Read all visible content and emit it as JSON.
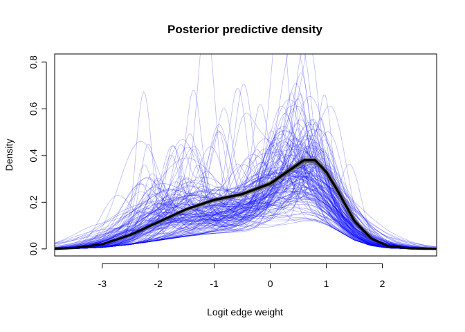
{
  "chart_data": {
    "type": "line",
    "title": "Posterior predictive density",
    "xlabel": "Logit edge weight",
    "ylabel": "Density",
    "xlim": [
      -3.85,
      2.97
    ],
    "ylim": [
      -0.03,
      0.835
    ],
    "x_ticks": [
      -3,
      -2,
      -1,
      0,
      1,
      2
    ],
    "x_tick_labels": [
      "-3",
      "-2",
      "-1",
      "0",
      "1",
      "2"
    ],
    "y_ticks": [
      0.0,
      0.2,
      0.4,
      0.6,
      0.8
    ],
    "y_tick_labels": [
      "0.0",
      "0.2",
      "0.4",
      "0.6",
      "0.8"
    ],
    "grid": false,
    "legend": "none",
    "colors": {
      "replicates": "#0000ff",
      "observed": "#000000",
      "observed_band": "#555555",
      "baseline": "#e6e6e6"
    },
    "series": [
      {
        "role": "observed",
        "x": [
          -3.85,
          -3.5,
          -3.0,
          -2.5,
          -2.0,
          -1.5,
          -1.0,
          -0.5,
          0.0,
          0.3,
          0.6,
          0.8,
          1.0,
          1.2,
          1.5,
          1.8,
          2.1,
          2.5,
          2.97
        ],
        "y": [
          0.0,
          0.004,
          0.02,
          0.06,
          0.115,
          0.17,
          0.21,
          0.235,
          0.28,
          0.33,
          0.38,
          0.38,
          0.33,
          0.25,
          0.12,
          0.045,
          0.012,
          0.002,
          0.0
        ]
      }
    ],
    "posterior_replicates": 150
  }
}
